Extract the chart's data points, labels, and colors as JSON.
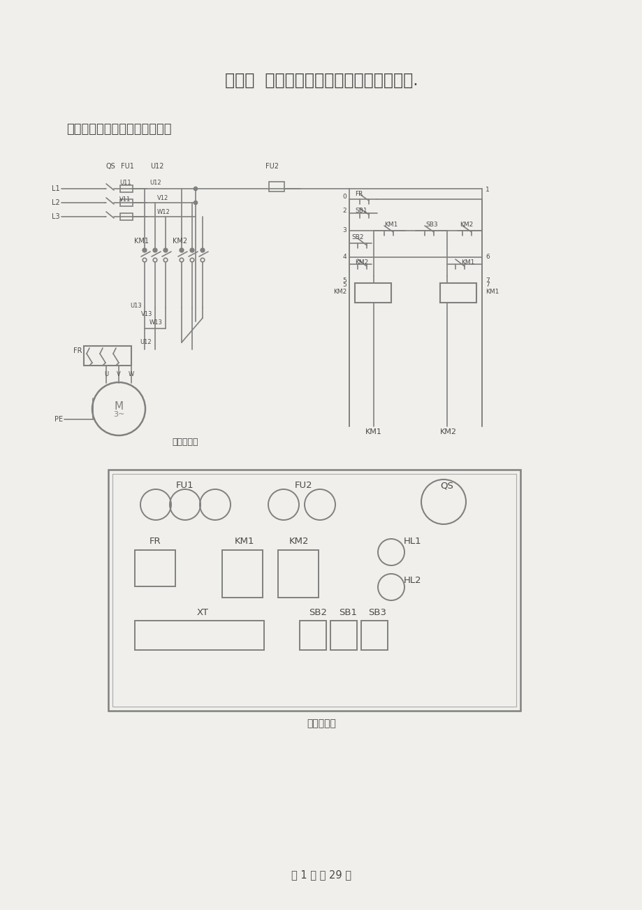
{
  "title": "任务一  异步电动机接触器联锁正反转控制.",
  "subtitle": "一、电气原理图和电器位置图：",
  "page_footer": "第 1 页 共 29 页",
  "diagram1_label": "电气原理图",
  "diagram2_label": "电器位置图",
  "bg_color": "#f0efeb",
  "line_color": "#808080",
  "text_color": "#4a4a4a",
  "fig_width": 9.2,
  "fig_height": 13.02
}
